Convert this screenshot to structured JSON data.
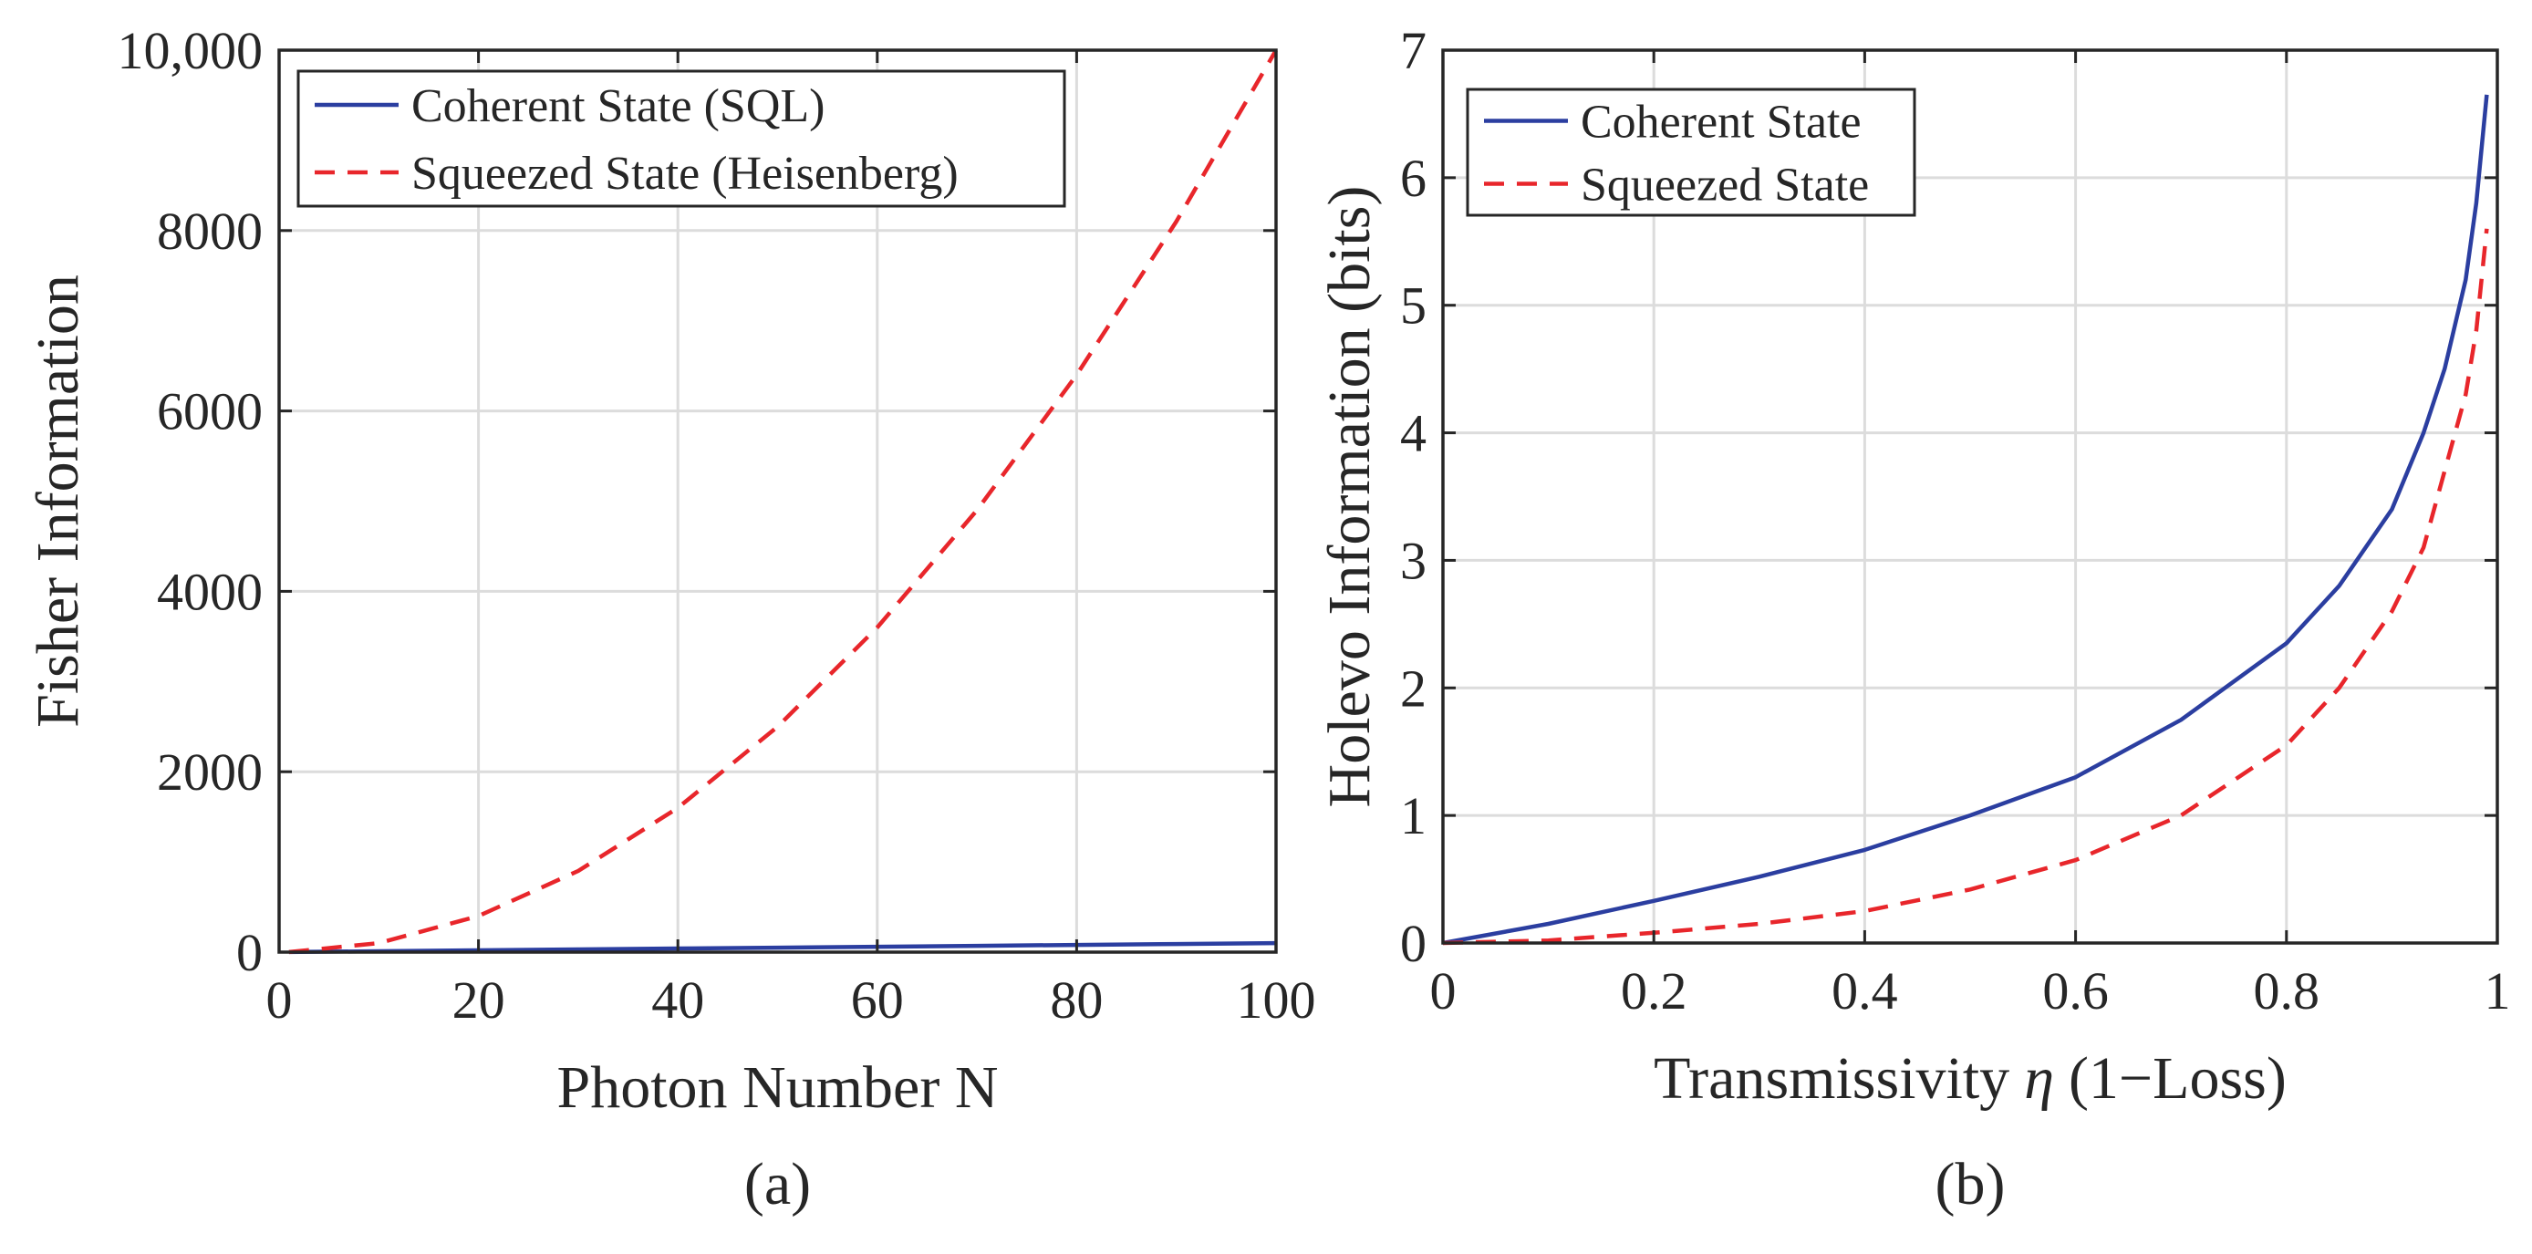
{
  "chart_data": [
    {
      "type": "line",
      "panel_label": "(a)",
      "xlabel": "Photon Number N",
      "ylabel": "Fisher Information",
      "xlim": [
        0,
        100
      ],
      "ylim": [
        0,
        10000
      ],
      "xticks": [
        0,
        20,
        40,
        60,
        80,
        100
      ],
      "xtick_labels": [
        "0",
        "20",
        "40",
        "60",
        "80",
        "100"
      ],
      "yticks": [
        0,
        2000,
        4000,
        6000,
        8000,
        10000
      ],
      "ytick_labels": [
        "0",
        "2000",
        "4000",
        "6000",
        "8000",
        "10,000"
      ],
      "grid": true,
      "legend_position": "top-left",
      "series": [
        {
          "name": "Coherent State (SQL)",
          "color": "#2b3ea0",
          "dash": "solid",
          "x": [
            1,
            10,
            20,
            30,
            40,
            50,
            60,
            70,
            80,
            90,
            100
          ],
          "y": [
            1,
            10,
            20,
            30,
            40,
            50,
            60,
            70,
            80,
            90,
            100
          ]
        },
        {
          "name": "Squeezed State (Heisenberg)",
          "color": "#e8262b",
          "dash": "dashed",
          "x": [
            1,
            10,
            20,
            30,
            40,
            50,
            60,
            70,
            80,
            90,
            100
          ],
          "y": [
            1,
            100,
            400,
            900,
            1600,
            2500,
            3600,
            4900,
            6400,
            8100,
            10000
          ]
        }
      ]
    },
    {
      "type": "line",
      "panel_label": "(b)",
      "xlabel_main": "Transmissivity",
      "xlabel_symbol": "η",
      "xlabel_paren": "(1−Loss)",
      "ylabel": "Holevo Information (bits)",
      "xlim": [
        0,
        1
      ],
      "ylim": [
        0,
        7
      ],
      "xticks": [
        0,
        0.2,
        0.4,
        0.6,
        0.8,
        1
      ],
      "xtick_labels": [
        "0",
        "0.2",
        "0.4",
        "0.6",
        "0.8",
        "1"
      ],
      "yticks": [
        0,
        1,
        2,
        3,
        4,
        5,
        6,
        7
      ],
      "ytick_labels": [
        "0",
        "1",
        "2",
        "3",
        "4",
        "5",
        "6",
        "7"
      ],
      "grid": true,
      "legend_position": "top-left",
      "series": [
        {
          "name": "Coherent State",
          "color": "#2b3ea0",
          "dash": "solid",
          "x": [
            0,
            0.1,
            0.2,
            0.3,
            0.4,
            0.5,
            0.6,
            0.7,
            0.8,
            0.85,
            0.9,
            0.93,
            0.95,
            0.97,
            0.98,
            0.99
          ],
          "y": [
            0,
            0.15,
            0.33,
            0.52,
            0.73,
            1.0,
            1.3,
            1.75,
            2.35,
            2.8,
            3.4,
            4.0,
            4.5,
            5.2,
            5.8,
            6.65
          ]
        },
        {
          "name": "Squeezed State",
          "color": "#e8262b",
          "dash": "dashed",
          "x": [
            0,
            0.1,
            0.2,
            0.3,
            0.4,
            0.5,
            0.6,
            0.7,
            0.8,
            0.85,
            0.9,
            0.93,
            0.95,
            0.97,
            0.98,
            0.99
          ],
          "y": [
            0,
            0.02,
            0.08,
            0.15,
            0.25,
            0.42,
            0.65,
            1.0,
            1.55,
            2.0,
            2.6,
            3.1,
            3.7,
            4.3,
            4.8,
            5.6
          ]
        }
      ]
    }
  ]
}
